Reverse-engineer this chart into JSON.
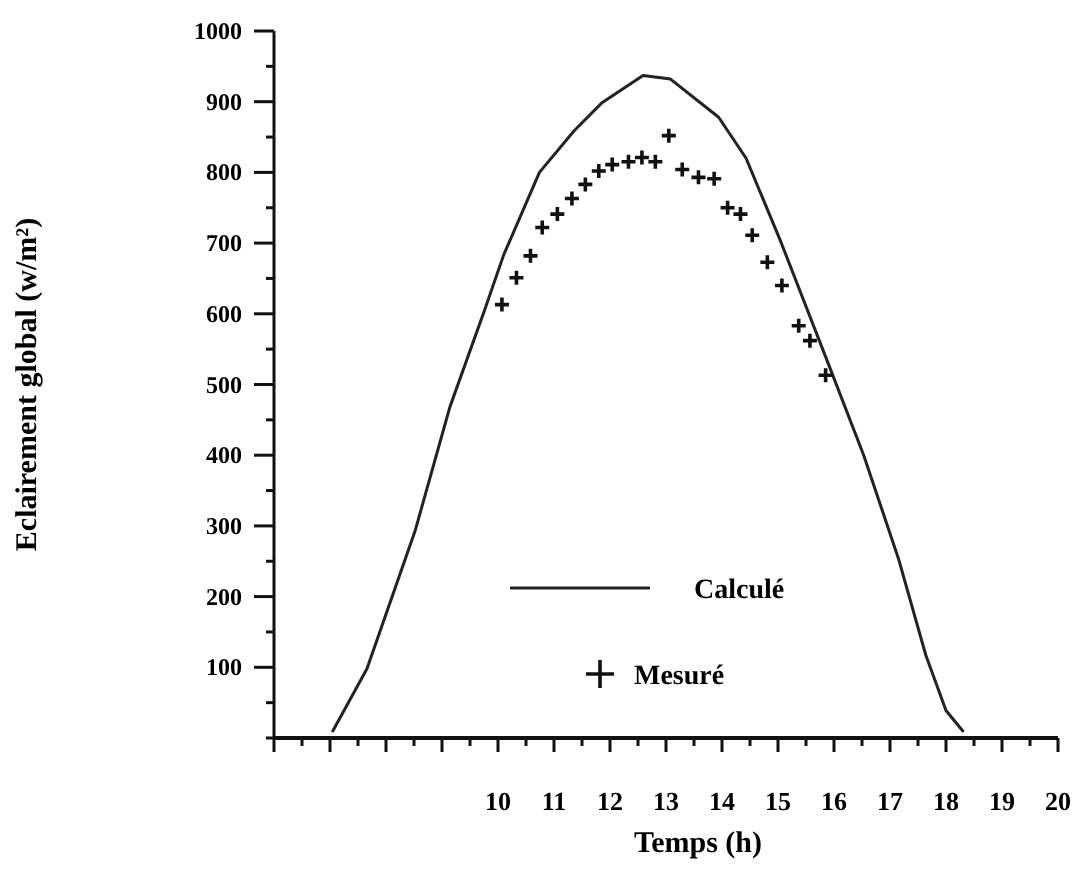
{
  "chart_data": {
    "type": "line",
    "xlabel": "Temps (h)",
    "ylabel": "Eclairement global (w/m²)",
    "xlim": [
      6,
      20
    ],
    "ylim": [
      0,
      1000
    ],
    "xticks": [
      {
        "value": 6,
        "label": null
      },
      {
        "value": 6.5,
        "label": null
      },
      {
        "value": 7,
        "label": null
      },
      {
        "value": 7.5,
        "label": null
      },
      {
        "value": 8,
        "label": null
      },
      {
        "value": 8.5,
        "label": null
      },
      {
        "value": 9,
        "label": null
      },
      {
        "value": 9.5,
        "label": null
      },
      10,
      {
        "value": 10.5,
        "label": null
      },
      11,
      {
        "value": 11.5,
        "label": null
      },
      12,
      {
        "value": 12.5,
        "label": null
      },
      13,
      {
        "value": 13.5,
        "label": null
      },
      14,
      {
        "value": 14.5,
        "label": null
      },
      15,
      {
        "value": 15.5,
        "label": null
      },
      16,
      {
        "value": 16.5,
        "label": null
      },
      17,
      {
        "value": 17.5,
        "label": null
      },
      18,
      {
        "value": 18.5,
        "label": null
      },
      19,
      {
        "value": 19.5,
        "label": null
      },
      20
    ],
    "yticks": [
      {
        "value": 0,
        "label": null
      },
      {
        "value": 50,
        "label": null
      },
      100,
      {
        "value": 150,
        "label": null
      },
      200,
      {
        "value": 250,
        "label": null
      },
      300,
      {
        "value": 350,
        "label": null
      },
      400,
      {
        "value": 450,
        "label": null
      },
      500,
      {
        "value": 550,
        "label": null
      },
      600,
      {
        "value": 650,
        "label": null
      },
      700,
      {
        "value": 750,
        "label": null
      },
      800,
      {
        "value": 850,
        "label": null
      },
      900,
      {
        "value": 950,
        "label": null
      },
      1000
    ],
    "legend": "bottom",
    "grid": false,
    "series": [
      {
        "name": "Calculé",
        "color": "#222222",
        "line_style": "solid",
        "marker": "none",
        "x": [
          7.05,
          7.66,
          8.52,
          9.14,
          9.76,
          10.1,
          10.74,
          11.36,
          11.85,
          12.59,
          13.08,
          13.94,
          14.43,
          15.05,
          15.91,
          16.53,
          17.15,
          17.64,
          18.0,
          18.3
        ],
        "values": [
          10,
          98,
          293,
          468,
          605,
          683,
          800,
          859,
          898,
          937,
          932,
          878,
          820,
          702,
          527,
          400,
          254,
          117,
          39,
          10
        ]
      },
      {
        "name": "Mesuré",
        "type": "scatter",
        "color": "#111111",
        "marker": "cross",
        "x": [
          10.07,
          10.33,
          10.58,
          10.79,
          11.06,
          11.32,
          11.56,
          11.8,
          12.04,
          12.33,
          12.57,
          12.81,
          13.05,
          13.29,
          13.58,
          13.86,
          14.1,
          14.33,
          14.54,
          14.81,
          15.07,
          15.37,
          15.57,
          15.85
        ],
        "values": [
          613,
          651,
          682,
          722,
          741,
          763,
          783,
          802,
          811,
          815,
          821,
          815,
          852,
          804,
          793,
          791,
          750,
          741,
          711,
          673,
          640,
          583,
          562,
          513
        ]
      }
    ]
  }
}
